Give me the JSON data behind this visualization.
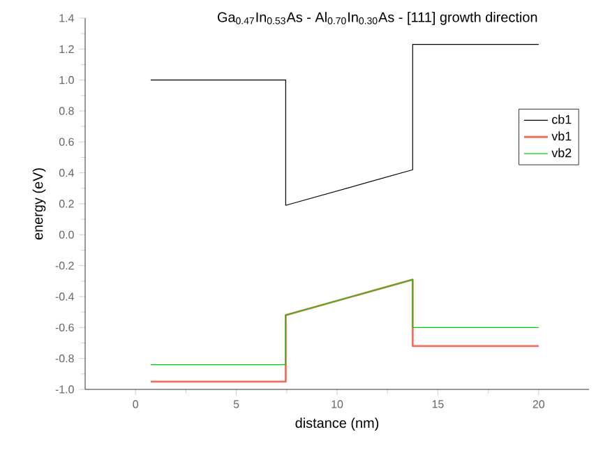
{
  "chart_data": {
    "type": "line",
    "title": "Ga$_{0.47}$In$_{0.53}$As  -  Al$_{0.70}$In$_{0.30}$As    -    [111] growth direction",
    "xlabel": "distance (nm)",
    "ylabel": "energy (eV)",
    "xlim": [
      -2.5,
      22.5
    ],
    "ylim": [
      -1.0,
      1.4
    ],
    "xticks": [
      0,
      5,
      10,
      15,
      20
    ],
    "yticks": [
      {
        "value": -1.0,
        "label": "-1.0"
      },
      {
        "value": -0.8,
        "label": "-0.8"
      },
      {
        "value": -0.6,
        "label": "-0.6"
      },
      {
        "value": -0.4,
        "label": "-0.4"
      },
      {
        "value": -0.2,
        "label": "-0.2"
      },
      {
        "value": 0.0,
        "label": "0.0"
      },
      {
        "value": 0.2,
        "label": "0.2"
      },
      {
        "value": 0.4,
        "label": "0.4"
      },
      {
        "value": 0.6,
        "label": "0.6"
      },
      {
        "value": 0.8,
        "label": "0.8"
      },
      {
        "value": 1.0,
        "label": "1.0"
      },
      {
        "value": 1.2,
        "label": "1.2"
      },
      {
        "value": 1.4,
        "label": "1.4"
      }
    ],
    "x": [
      0.75,
      7.45,
      7.45,
      13.75,
      13.75,
      20
    ],
    "series": [
      {
        "name": "cb1",
        "color": "#000000",
        "values": [
          1.0,
          1.0,
          0.19,
          0.42,
          1.23,
          1.23
        ]
      },
      {
        "name": "vb1",
        "color": "#f07060",
        "values": [
          -0.95,
          -0.95,
          -0.52,
          -0.29,
          -0.72,
          -0.72
        ]
      },
      {
        "name": "vb2",
        "color": "#00d000",
        "values": [
          -0.84,
          -0.84,
          -0.52,
          -0.29,
          -0.6,
          -0.6
        ]
      }
    ],
    "legend": "right",
    "grid": false,
    "marker": "none",
    "line_style": "solid"
  }
}
